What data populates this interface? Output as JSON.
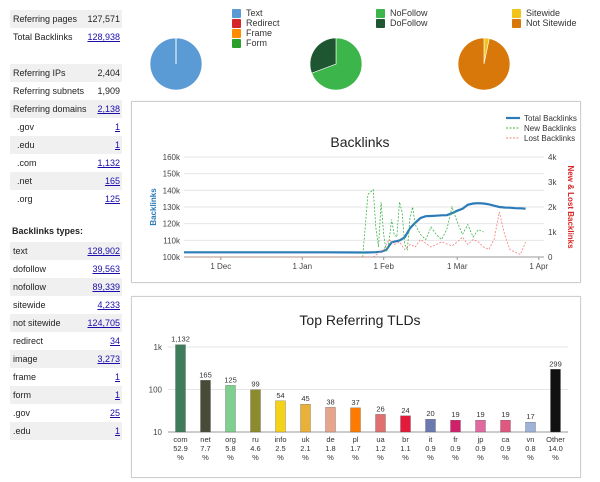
{
  "summary": [
    {
      "label": "Referring pages",
      "value": "127,571",
      "link": false
    },
    {
      "label": "Total Backlinks",
      "value": "128,938",
      "link": true
    }
  ],
  "referring": [
    {
      "label": "Referring IPs",
      "value": "2,404",
      "link": false
    },
    {
      "label": "Referring subnets",
      "value": "1,909",
      "link": false
    },
    {
      "label": "Referring domains",
      "value": "2,138",
      "link": true
    },
    {
      "label": ".gov",
      "value": "1",
      "link": true
    },
    {
      "label": ".edu",
      "value": "1",
      "link": true
    },
    {
      "label": ".com",
      "value": "1,132",
      "link": true
    },
    {
      "label": ".net",
      "value": "165",
      "link": true
    },
    {
      "label": ".org",
      "value": "125",
      "link": true
    }
  ],
  "backlink_types_title": "Backlinks types:",
  "backlink_types": [
    {
      "label": "text",
      "value": "128,902"
    },
    {
      "label": "dofollow",
      "value": "39,563"
    },
    {
      "label": "nofollow",
      "value": "89,339"
    },
    {
      "label": "sitewide",
      "value": "4,233"
    },
    {
      "label": "not sitewide",
      "value": "124,705"
    },
    {
      "label": "redirect",
      "value": "34"
    },
    {
      "label": "image",
      "value": "3,273"
    },
    {
      "label": "frame",
      "value": "1"
    },
    {
      "label": "form",
      "value": "1"
    },
    {
      "label": ".gov",
      "value": "25"
    },
    {
      "label": ".edu",
      "value": "1"
    }
  ],
  "legend_groups": [
    [
      {
        "label": "Text",
        "color": "#5b9bd5"
      },
      {
        "label": "Redirect",
        "color": "#d62728"
      },
      {
        "label": "Frame",
        "color": "#ff8c00"
      },
      {
        "label": "Form",
        "color": "#2ca02c"
      }
    ],
    [
      {
        "label": "NoFollow",
        "color": "#3cb54a"
      },
      {
        "label": "DoFollow",
        "color": "#1e5631"
      }
    ],
    [
      {
        "label": "Sitewide",
        "color": "#f0c419"
      },
      {
        "label": "Not Sitewide",
        "color": "#d9780a"
      }
    ]
  ],
  "pies": [
    {
      "slices": [
        {
          "label": "Text",
          "value": 128902,
          "color": "#5b9bd5"
        },
        {
          "label": "Redirect",
          "value": 34,
          "color": "#d62728"
        },
        {
          "label": "Frame",
          "value": 1,
          "color": "#ff8c00"
        },
        {
          "label": "Form",
          "value": 1,
          "color": "#2ca02c"
        }
      ]
    },
    {
      "slices": [
        {
          "label": "NoFollow",
          "value": 89339,
          "color": "#3cb54a"
        },
        {
          "label": "DoFollow",
          "value": 39563,
          "color": "#1e5631"
        }
      ]
    },
    {
      "slices": [
        {
          "label": "Sitewide",
          "value": 4233,
          "color": "#f0c419"
        },
        {
          "label": "Not Sitewide",
          "value": 124705,
          "color": "#d9780a"
        }
      ]
    }
  ],
  "chart_data": [
    {
      "type": "line",
      "title": "Backlinks",
      "ylabel": "Backlinks",
      "y2label": "New & Lost Backlinks",
      "ylim": [
        100000,
        160000
      ],
      "y2lim": [
        0,
        4000
      ],
      "yticks": [
        "100k",
        "110k",
        "120k",
        "130k",
        "140k",
        "150k",
        "160k"
      ],
      "y2ticks": [
        "0",
        "1k",
        "2k",
        "3k",
        "4k"
      ],
      "xticks": [
        {
          "label": "1 Dec",
          "day": 0
        },
        {
          "label": "1 Jan",
          "day": 31
        },
        {
          "label": "1 Feb",
          "day": 62
        },
        {
          "label": "1 Mar",
          "day": 90
        },
        {
          "label": "1 Apr",
          "day": 121
        }
      ],
      "xrange": [
        -14,
        123
      ],
      "legend": [
        "Total Backlinks",
        "New Backlinks",
        "Lost Backlinks"
      ],
      "series": [
        {
          "name": "Total Backlinks",
          "axis": "left",
          "color": "#2b7bb9",
          "x": [
            -14,
            0,
            20,
            40,
            55,
            59,
            61,
            63,
            65,
            68,
            70,
            72,
            74,
            76,
            78,
            80,
            82,
            84,
            86,
            88,
            90,
            92,
            94,
            96,
            98,
            100,
            102,
            104,
            106,
            108,
            110,
            112,
            114,
            116
          ],
          "y": [
            102800,
            102800,
            102800,
            102800,
            102700,
            102900,
            103200,
            104300,
            108800,
            109900,
            111800,
            117200,
            120500,
            123400,
            124500,
            124600,
            124800,
            125000,
            125100,
            126300,
            127800,
            128900,
            131300,
            132100,
            132300,
            132100,
            131600,
            130800,
            130000,
            129700,
            129600,
            129300,
            129200,
            129000
          ]
        },
        {
          "name": "New Backlinks",
          "axis": "right",
          "color": "#3cb54a",
          "x": [
            -14,
            52,
            54,
            56,
            58,
            59,
            60,
            61,
            62,
            63,
            64,
            65,
            66,
            67,
            68,
            69,
            70,
            71,
            72,
            73,
            74,
            76,
            78,
            80,
            82,
            84,
            86,
            88,
            90,
            92,
            94,
            96,
            98,
            100
          ],
          "y": [
            0,
            0,
            0,
            2500,
            2700,
            1200,
            400,
            2200,
            900,
            200,
            600,
            1500,
            900,
            800,
            2200,
            1800,
            500,
            300,
            1600,
            2000,
            1300,
            900,
            700,
            1200,
            900,
            700,
            1100,
            2000,
            1400,
            900,
            1300,
            800,
            1100,
            1000
          ]
        },
        {
          "name": "Lost Backlinks",
          "axis": "right",
          "color": "#f08080",
          "x": [
            -14,
            58,
            60,
            62,
            64,
            66,
            68,
            70,
            72,
            74,
            76,
            80,
            84,
            88,
            90,
            92,
            94,
            96,
            98,
            100,
            102,
            104,
            106,
            108,
            110,
            112,
            114,
            116
          ],
          "y": [
            0,
            0,
            150,
            300,
            700,
            500,
            600,
            300,
            500,
            400,
            700,
            400,
            600,
            450,
            600,
            800,
            500,
            700,
            600,
            400,
            300,
            700,
            1800,
            900,
            300,
            200,
            100,
            600
          ]
        }
      ]
    },
    {
      "type": "bar",
      "title": "Top Referring TLDs",
      "log_scale": true,
      "ylim": [
        10,
        1000
      ],
      "yticks": [
        "10",
        "100",
        "1k"
      ],
      "categories": [
        "com",
        "net",
        "org",
        "ru",
        "info",
        "uk",
        "de",
        "pl",
        "ua",
        "br",
        "it",
        "fr",
        "jp",
        "ca",
        "vn",
        "Other"
      ],
      "values": [
        1132,
        165,
        125,
        99,
        54,
        45,
        38,
        37,
        26,
        24,
        20,
        19,
        19,
        19,
        17,
        299
      ],
      "value_labels": [
        "1,132",
        "165",
        "125",
        "99",
        "54",
        "45",
        "38",
        "37",
        "26",
        "24",
        "20",
        "19",
        "19",
        "19",
        "17",
        "299"
      ],
      "percents": [
        "52.9 %",
        "7.7 %",
        "5.8 %",
        "4.6 %",
        "2.5 %",
        "2.1 %",
        "1.8 %",
        "1.7 %",
        "1.2 %",
        "1.1 %",
        "0.9 %",
        "0.9 %",
        "0.9 %",
        "0.9 %",
        "0.8 %",
        "14.0 %"
      ],
      "colors": [
        "#3e7c5b",
        "#4a4a38",
        "#7fcf8e",
        "#8c8c2e",
        "#f5d21a",
        "#e8b23a",
        "#e6a58c",
        "#ff7a00",
        "#e07070",
        "#e31a3a",
        "#6a7ab0",
        "#d0206a",
        "#e06aa0",
        "#e05880",
        "#9fb3d8",
        "#111111"
      ]
    }
  ]
}
